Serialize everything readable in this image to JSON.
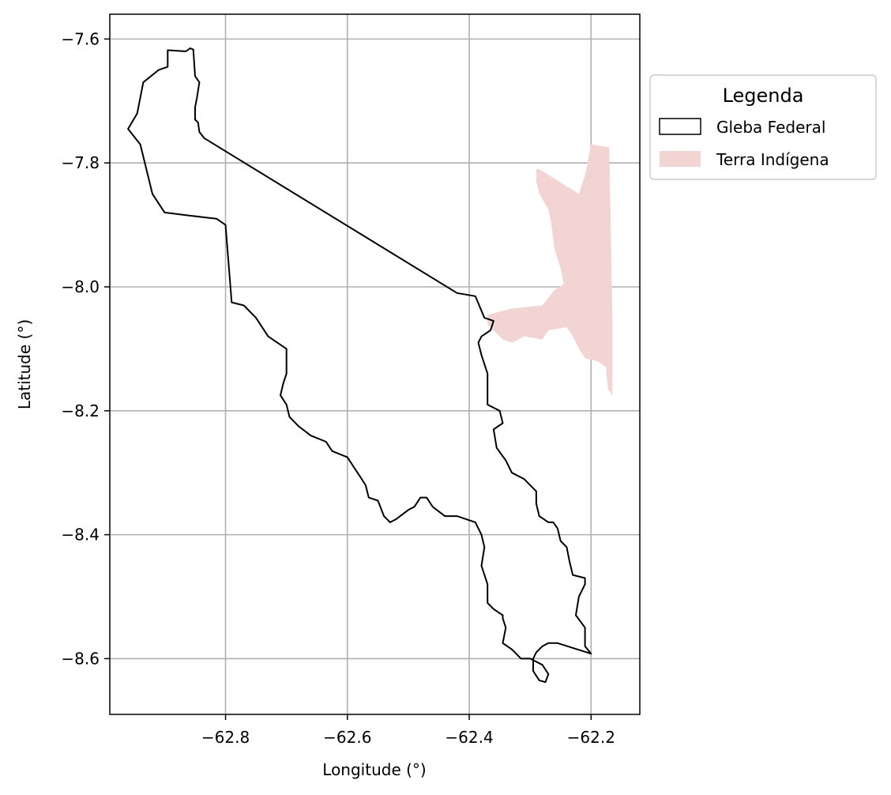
{
  "chart_data": {
    "type": "map",
    "xlabel": "Longitude (°)",
    "ylabel": "Latitude (°)",
    "xlim": [
      -62.99,
      -62.12
    ],
    "ylim": [
      -8.69,
      -7.56
    ],
    "xticks": [
      -62.8,
      -62.6,
      -62.4,
      -62.2
    ],
    "yticks": [
      -7.6,
      -7.8,
      -8.0,
      -8.2,
      -8.4,
      -8.6
    ],
    "xtick_labels": [
      "−62.8",
      "−62.6",
      "−62.4",
      "−62.2"
    ],
    "ytick_labels": [
      "−7.6",
      "−7.8",
      "−8.0",
      "−8.2",
      "−8.4",
      "−8.6"
    ],
    "grid": true,
    "legend": {
      "title": "Legenda",
      "placement": "outside-right-top",
      "entries": [
        {
          "label": "Gleba Federal",
          "style": "outline",
          "edge_color": "#000000",
          "fill": "none"
        },
        {
          "label": "Terra Indígena",
          "style": "filled",
          "fill": "#f2d4d3"
        }
      ]
    },
    "series": [
      {
        "name": "Terra Indígena",
        "fill": "#f2d4d3",
        "coords": [
          [
            -62.37,
            -8.045
          ],
          [
            -62.33,
            -8.035
          ],
          [
            -62.28,
            -8.03
          ],
          [
            -62.26,
            -8.005
          ],
          [
            -62.245,
            -7.995
          ],
          [
            -62.25,
            -7.97
          ],
          [
            -62.26,
            -7.94
          ],
          [
            -62.265,
            -7.9
          ],
          [
            -62.27,
            -7.875
          ],
          [
            -62.285,
            -7.85
          ],
          [
            -62.29,
            -7.83
          ],
          [
            -62.29,
            -7.81
          ],
          [
            -62.285,
            -7.81
          ],
          [
            -62.22,
            -7.85
          ],
          [
            -62.21,
            -7.82
          ],
          [
            -62.2,
            -7.77
          ],
          [
            -62.17,
            -7.775
          ],
          [
            -62.165,
            -8.05
          ],
          [
            -62.165,
            -8.175
          ],
          [
            -62.172,
            -8.165
          ],
          [
            -62.175,
            -8.14
          ],
          [
            -62.175,
            -8.13
          ],
          [
            -62.19,
            -8.12
          ],
          [
            -62.21,
            -8.115
          ],
          [
            -62.22,
            -8.1
          ],
          [
            -62.23,
            -8.08
          ],
          [
            -62.24,
            -8.065
          ],
          [
            -62.27,
            -8.07
          ],
          [
            -62.28,
            -8.085
          ],
          [
            -62.31,
            -8.08
          ],
          [
            -62.33,
            -8.09
          ],
          [
            -62.345,
            -8.085
          ],
          [
            -62.36,
            -8.07
          ],
          [
            -62.37,
            -8.06
          ]
        ]
      },
      {
        "name": "Gleba Federal",
        "edge_color": "#000000",
        "fill": "none",
        "coords": [
          [
            -62.895,
            -7.618
          ],
          [
            -62.865,
            -7.62
          ],
          [
            -62.858,
            -7.615
          ],
          [
            -62.853,
            -7.617
          ],
          [
            -62.85,
            -7.66
          ],
          [
            -62.843,
            -7.67
          ],
          [
            -62.847,
            -7.695
          ],
          [
            -62.85,
            -7.71
          ],
          [
            -62.85,
            -7.73
          ],
          [
            -62.845,
            -7.735
          ],
          [
            -62.843,
            -7.75
          ],
          [
            -62.835,
            -7.76
          ],
          [
            -62.42,
            -8.01
          ],
          [
            -62.39,
            -8.015
          ],
          [
            -62.375,
            -8.05
          ],
          [
            -62.36,
            -8.055
          ],
          [
            -62.365,
            -8.07
          ],
          [
            -62.38,
            -8.08
          ],
          [
            -62.385,
            -8.09
          ],
          [
            -62.38,
            -8.11
          ],
          [
            -62.37,
            -8.14
          ],
          [
            -62.37,
            -8.19
          ],
          [
            -62.35,
            -8.2
          ],
          [
            -62.345,
            -8.22
          ],
          [
            -62.36,
            -8.23
          ],
          [
            -62.355,
            -8.26
          ],
          [
            -62.34,
            -8.28
          ],
          [
            -62.33,
            -8.3
          ],
          [
            -62.31,
            -8.31
          ],
          [
            -62.3,
            -8.32
          ],
          [
            -62.29,
            -8.33
          ],
          [
            -62.29,
            -8.35
          ],
          [
            -62.285,
            -8.37
          ],
          [
            -62.27,
            -8.38
          ],
          [
            -62.262,
            -8.38
          ],
          [
            -62.255,
            -8.39
          ],
          [
            -62.25,
            -8.41
          ],
          [
            -62.24,
            -8.42
          ],
          [
            -62.235,
            -8.445
          ],
          [
            -62.23,
            -8.465
          ],
          [
            -62.21,
            -8.47
          ],
          [
            -62.21,
            -8.48
          ],
          [
            -62.22,
            -8.5
          ],
          [
            -62.225,
            -8.53
          ],
          [
            -62.21,
            -8.55
          ],
          [
            -62.21,
            -8.58
          ],
          [
            -62.2,
            -8.592
          ],
          [
            -62.255,
            -8.575
          ],
          [
            -62.27,
            -8.575
          ],
          [
            -62.28,
            -8.58
          ],
          [
            -62.29,
            -8.59
          ],
          [
            -62.295,
            -8.6
          ],
          [
            -62.295,
            -8.62
          ],
          [
            -62.285,
            -8.635
          ],
          [
            -62.275,
            -8.638
          ],
          [
            -62.27,
            -8.625
          ],
          [
            -62.28,
            -8.61
          ],
          [
            -62.3,
            -8.6
          ],
          [
            -62.315,
            -8.6
          ],
          [
            -62.33,
            -8.585
          ],
          [
            -62.345,
            -8.575
          ],
          [
            -62.34,
            -8.55
          ],
          [
            -62.345,
            -8.535
          ],
          [
            -62.345,
            -8.53
          ],
          [
            -62.36,
            -8.52
          ],
          [
            -62.37,
            -8.51
          ],
          [
            -62.37,
            -8.48
          ],
          [
            -62.38,
            -8.45
          ],
          [
            -62.375,
            -8.42
          ],
          [
            -62.38,
            -8.4
          ],
          [
            -62.39,
            -8.38
          ],
          [
            -62.42,
            -8.37
          ],
          [
            -62.44,
            -8.37
          ],
          [
            -62.46,
            -8.355
          ],
          [
            -62.47,
            -8.34
          ],
          [
            -62.48,
            -8.34
          ],
          [
            -62.49,
            -8.355
          ],
          [
            -62.5,
            -8.36
          ],
          [
            -62.52,
            -8.375
          ],
          [
            -62.53,
            -8.38
          ],
          [
            -62.54,
            -8.37
          ],
          [
            -62.55,
            -8.345
          ],
          [
            -62.565,
            -8.34
          ],
          [
            -62.57,
            -8.32
          ],
          [
            -62.58,
            -8.305
          ],
          [
            -62.59,
            -8.29
          ],
          [
            -62.6,
            -8.275
          ],
          [
            -62.625,
            -8.265
          ],
          [
            -62.635,
            -8.25
          ],
          [
            -62.66,
            -8.24
          ],
          [
            -62.68,
            -8.225
          ],
          [
            -62.695,
            -8.21
          ],
          [
            -62.7,
            -8.19
          ],
          [
            -62.71,
            -8.175
          ],
          [
            -62.705,
            -8.155
          ],
          [
            -62.7,
            -8.14
          ],
          [
            -62.7,
            -8.1
          ],
          [
            -62.715,
            -8.09
          ],
          [
            -62.73,
            -8.08
          ],
          [
            -62.75,
            -8.05
          ],
          [
            -62.77,
            -8.03
          ],
          [
            -62.79,
            -8.025
          ],
          [
            -62.8,
            -7.9
          ],
          [
            -62.815,
            -7.89
          ],
          [
            -62.86,
            -7.885
          ],
          [
            -62.9,
            -7.88
          ],
          [
            -62.92,
            -7.85
          ],
          [
            -62.93,
            -7.81
          ],
          [
            -62.94,
            -7.77
          ],
          [
            -62.96,
            -7.745
          ],
          [
            -62.945,
            -7.72
          ],
          [
            -62.935,
            -7.67
          ],
          [
            -62.91,
            -7.65
          ],
          [
            -62.895,
            -7.645
          ]
        ]
      }
    ]
  }
}
